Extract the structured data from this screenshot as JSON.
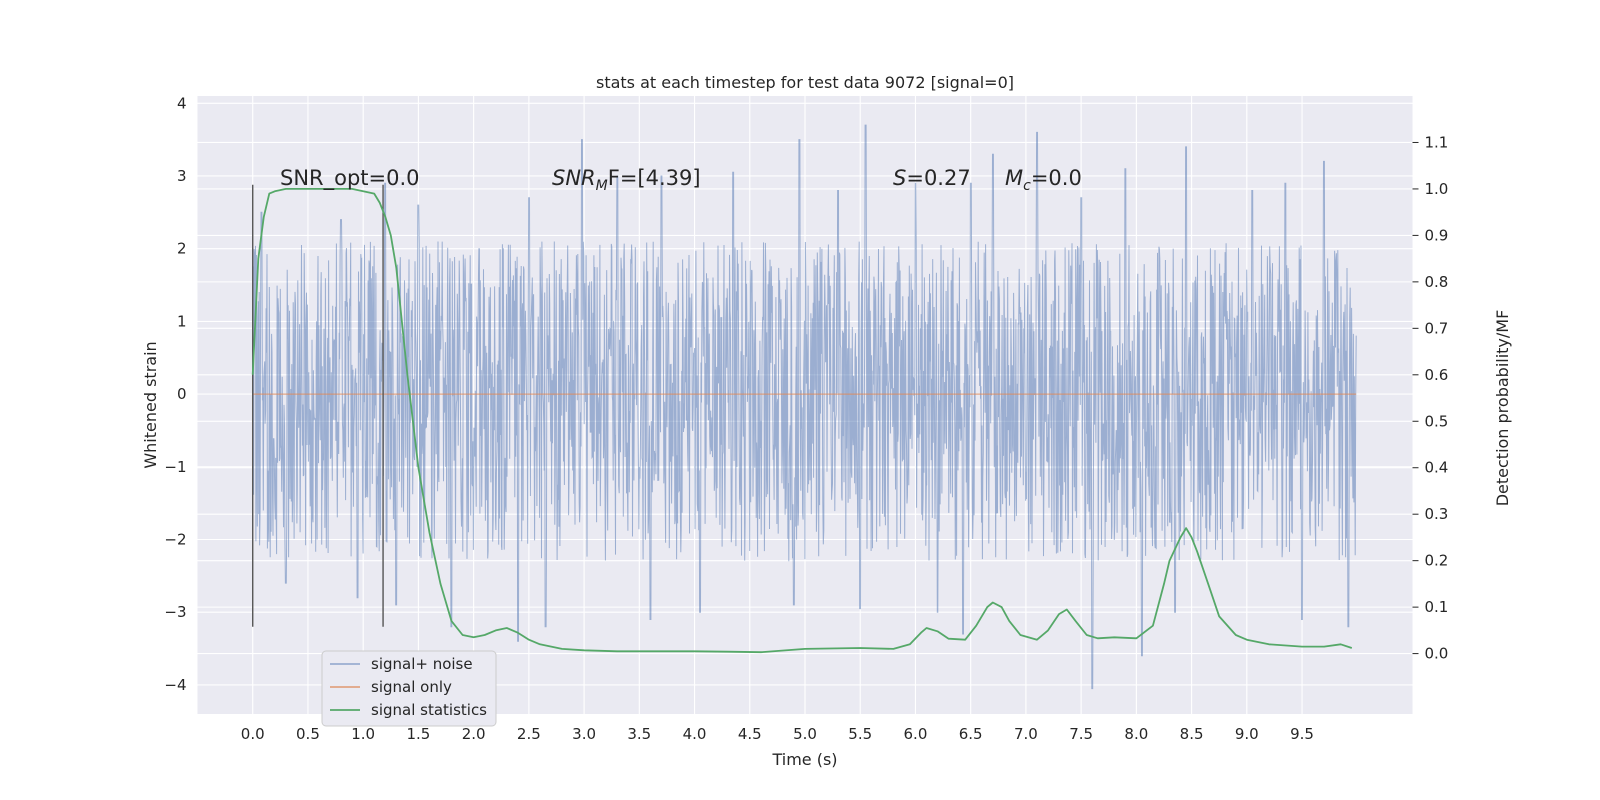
{
  "chart_data": {
    "type": "line",
    "title": "stats at each timestep for test data 9072 [signal=0]",
    "xlabel": "Time (s)",
    "ylabel": "Whitened strain",
    "y2label": "Detection probability/MF",
    "xlim": [
      -0.5,
      10.5
    ],
    "ylim": [
      -4.4,
      4.1
    ],
    "y2lim": [
      -0.13,
      1.2
    ],
    "x_ticks": [
      "0.0",
      "0.5",
      "1.0",
      "1.5",
      "2.0",
      "2.5",
      "3.0",
      "3.5",
      "4.0",
      "4.5",
      "5.0",
      "5.5",
      "6.0",
      "6.5",
      "7.0",
      "7.5",
      "8.0",
      "8.5",
      "9.0",
      "9.5"
    ],
    "y_ticks": [
      "−4",
      "−3",
      "−2",
      "−1",
      "0",
      "1",
      "2",
      "3",
      "4"
    ],
    "y2_ticks": [
      "0.0",
      "0.1",
      "0.2",
      "0.3",
      "0.4",
      "0.5",
      "0.6",
      "0.7",
      "0.8",
      "0.9",
      "1.0",
      "1.1"
    ],
    "grid": true,
    "legend_position": "lower-left",
    "vlines": [
      0.0,
      1.18
    ],
    "vline_range": [
      -3.2,
      2.88
    ],
    "annotations": {
      "snr_opt": "SNR_opt=0.0",
      "snr_mf_main": "SNR",
      "snr_mf_sub": "M",
      "snr_mf_rest": "F=[4.39]",
      "s_var": "S",
      "s_rest": "=0.27",
      "mc_var": "M",
      "mc_sub": "c",
      "mc_rest": "=0.0"
    },
    "series": [
      {
        "name": "signal+ noise",
        "color": "#4c72b0",
        "x_range": [
          0.0,
          9.99
        ],
        "core_range": [
          -0.95,
          1.0
        ],
        "peaks_up": [
          [
            0.0,
            1.75
          ],
          [
            0.08,
            2.5
          ],
          [
            0.8,
            2.4
          ],
          [
            1.2,
            2.9
          ],
          [
            1.5,
            2.6
          ],
          [
            2.05,
            2.0
          ],
          [
            2.5,
            2.7
          ],
          [
            2.98,
            3.5
          ],
          [
            3.3,
            3.0
          ],
          [
            3.7,
            3.0
          ],
          [
            4.35,
            3.05
          ],
          [
            4.95,
            3.5
          ],
          [
            5.3,
            2.8
          ],
          [
            5.55,
            3.7
          ],
          [
            6.0,
            2.9
          ],
          [
            6.5,
            2.9
          ],
          [
            6.7,
            3.3
          ],
          [
            7.1,
            3.6
          ],
          [
            7.5,
            2.7
          ],
          [
            7.9,
            3.1
          ],
          [
            8.45,
            3.4
          ],
          [
            9.05,
            2.8
          ],
          [
            9.35,
            2.9
          ],
          [
            9.7,
            3.2
          ]
        ],
        "peaks_down": [
          [
            0.3,
            -2.6
          ],
          [
            0.95,
            -2.8
          ],
          [
            1.3,
            -2.9
          ],
          [
            1.8,
            -3.2
          ],
          [
            2.4,
            -3.4
          ],
          [
            2.65,
            -3.2
          ],
          [
            3.6,
            -3.1
          ],
          [
            4.05,
            -3.0
          ],
          [
            4.9,
            -2.9
          ],
          [
            5.5,
            -2.95
          ],
          [
            6.2,
            -3.0
          ],
          [
            6.43,
            -3.3
          ],
          [
            7.6,
            -4.05
          ],
          [
            8.05,
            -3.6
          ],
          [
            8.35,
            -3.0
          ],
          [
            9.5,
            -3.1
          ],
          [
            9.92,
            -3.2
          ]
        ]
      },
      {
        "name": "signal only",
        "color": "#dd8452",
        "x": [
          0.0,
          9.99
        ],
        "y": [
          0.0,
          0.0
        ]
      },
      {
        "name": "signal statistics",
        "color": "#55a868",
        "axis": "right",
        "x": [
          0.0,
          0.05,
          0.1,
          0.15,
          0.2,
          0.3,
          0.5,
          0.7,
          0.9,
          1.0,
          1.1,
          1.15,
          1.2,
          1.25,
          1.3,
          1.4,
          1.5,
          1.6,
          1.7,
          1.8,
          1.9,
          2.0,
          2.1,
          2.2,
          2.3,
          2.4,
          2.5,
          2.6,
          2.8,
          3.0,
          3.3,
          3.6,
          4.0,
          4.3,
          4.6,
          5.0,
          5.5,
          5.8,
          5.95,
          6.05,
          6.1,
          6.2,
          6.3,
          6.45,
          6.55,
          6.65,
          6.7,
          6.78,
          6.85,
          6.95,
          7.1,
          7.2,
          7.3,
          7.37,
          7.45,
          7.55,
          7.65,
          7.8,
          8.0,
          8.15,
          8.25,
          8.3,
          8.4,
          8.45,
          8.5,
          8.55,
          8.65,
          8.75,
          8.9,
          9.0,
          9.2,
          9.5,
          9.7,
          9.85,
          9.95
        ],
        "y": [
          0.6,
          0.85,
          0.94,
          0.99,
          0.995,
          1.0,
          1.0,
          1.0,
          1.0,
          0.995,
          0.99,
          0.97,
          0.94,
          0.9,
          0.83,
          0.6,
          0.4,
          0.26,
          0.15,
          0.07,
          0.04,
          0.035,
          0.04,
          0.05,
          0.055,
          0.045,
          0.03,
          0.02,
          0.01,
          0.007,
          0.005,
          0.005,
          0.005,
          0.004,
          0.003,
          0.01,
          0.012,
          0.01,
          0.02,
          0.045,
          0.055,
          0.048,
          0.032,
          0.03,
          0.06,
          0.1,
          0.11,
          0.1,
          0.07,
          0.04,
          0.03,
          0.05,
          0.085,
          0.095,
          0.07,
          0.04,
          0.033,
          0.035,
          0.033,
          0.06,
          0.15,
          0.2,
          0.25,
          0.27,
          0.25,
          0.22,
          0.15,
          0.08,
          0.04,
          0.03,
          0.02,
          0.015,
          0.015,
          0.02,
          0.012
        ]
      }
    ]
  }
}
